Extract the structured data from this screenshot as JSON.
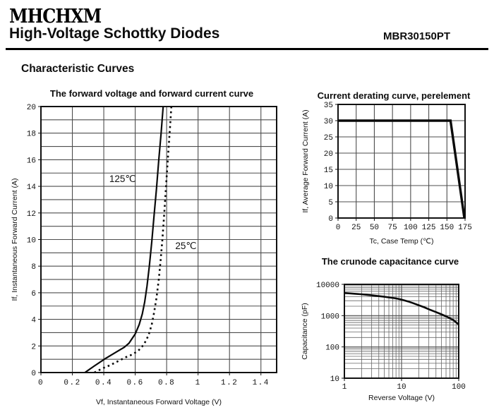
{
  "header": {
    "brand": "MHCHXM",
    "title": "High-Voltage Schottky Diodes",
    "part_number": "MBR30150PT",
    "section_title": "Characteristic Curves"
  },
  "styles": {
    "ink": "#111111",
    "grid": "#4d4d4d",
    "minor_grid": "#666666",
    "curve": "#0a0a0a",
    "background": "#ffffff"
  },
  "chart_data": [
    {
      "id": "forward",
      "type": "line",
      "title": "The forward voltage and forward current curve",
      "xlabel": "Vf, Instantaneous Forward Voltage (V)",
      "ylabel": "If, Instantaneous Forward Current (A)",
      "xscale": "linear",
      "yscale": "linear",
      "xlim": [
        0,
        1.5
      ],
      "ylim": [
        0,
        20
      ],
      "xgrid_step": 0.2,
      "ygrid_step": 1,
      "xticks": [
        0,
        0.2,
        0.4,
        0.6,
        0.8,
        1,
        1.2,
        1.4
      ],
      "xtick_labels": [
        "0",
        "0.2",
        "0.4",
        "0.6",
        "0.8",
        "1",
        "1.2",
        "1.4"
      ],
      "yticks": [
        0,
        2,
        4,
        6,
        8,
        10,
        12,
        14,
        16,
        18,
        20
      ],
      "ytick_labels": [
        "0",
        "2",
        "4",
        "6",
        "8",
        "10",
        "12",
        "14",
        "16",
        "18",
        "20"
      ],
      "grid": true,
      "legend_position": "inline-annotations",
      "series": [
        {
          "name": "125℃",
          "line": "solid",
          "width": 2.2,
          "points": [
            [
              0.28,
              0
            ],
            [
              0.34,
              0.5
            ],
            [
              0.41,
              1.05
            ],
            [
              0.48,
              1.55
            ],
            [
              0.53,
              1.9
            ],
            [
              0.56,
              2.2
            ],
            [
              0.6,
              2.9
            ],
            [
              0.625,
              3.6
            ],
            [
              0.645,
              4.4
            ],
            [
              0.66,
              5.3
            ],
            [
              0.675,
              6.5
            ],
            [
              0.69,
              8
            ],
            [
              0.705,
              9.8
            ],
            [
              0.72,
              11.8
            ],
            [
              0.735,
              13.8
            ],
            [
              0.75,
              16
            ],
            [
              0.765,
              18
            ],
            [
              0.778,
              20
            ]
          ]
        },
        {
          "name": "25℃",
          "line": "dashed",
          "width": 2.6,
          "points": [
            [
              0.34,
              0
            ],
            [
              0.39,
              0.3
            ],
            [
              0.44,
              0.55
            ],
            [
              0.49,
              0.85
            ],
            [
              0.54,
              1.15
            ],
            [
              0.58,
              1.35
            ],
            [
              0.62,
              1.65
            ],
            [
              0.655,
              2.1
            ],
            [
              0.685,
              2.8
            ],
            [
              0.705,
              3.6
            ],
            [
              0.72,
              4.5
            ],
            [
              0.735,
              5.6
            ],
            [
              0.75,
              7
            ],
            [
              0.762,
              8.5
            ],
            [
              0.773,
              10
            ],
            [
              0.785,
              12
            ],
            [
              0.797,
              14.2
            ],
            [
              0.81,
              16.5
            ],
            [
              0.822,
              18.5
            ],
            [
              0.83,
              20
            ]
          ]
        }
      ],
      "annotations": [
        {
          "text": "125℃",
          "x": 0.435,
          "y": 14.6
        },
        {
          "text": "25℃",
          "x": 0.855,
          "y": 9.55
        }
      ]
    },
    {
      "id": "derating",
      "type": "line",
      "title": "Current derating curve, perelement",
      "xlabel": "Tc, Case Temp (℃)",
      "ylabel": "If, Average Forward Current (A)",
      "xscale": "linear",
      "yscale": "linear",
      "xlim": [
        0,
        175
      ],
      "ylim": [
        0,
        35
      ],
      "xgrid_step": 25,
      "ygrid_step": 5,
      "xticks": [
        0,
        25,
        50,
        75,
        100,
        125,
        150,
        175
      ],
      "xtick_labels": [
        "0",
        "25",
        "50",
        "75",
        "100",
        "125",
        "150",
        "175"
      ],
      "yticks": [
        0,
        5,
        10,
        15,
        20,
        25,
        30,
        35
      ],
      "ytick_labels": [
        "0",
        "5",
        "10",
        "15",
        "20",
        "25",
        "30",
        "35"
      ],
      "grid": true,
      "legend_position": "none",
      "series": [
        {
          "name": "derating-limit",
          "line": "solid",
          "width": 3.4,
          "points": [
            [
              0,
              30
            ],
            [
              155,
              30
            ],
            [
              174,
              0
            ]
          ]
        }
      ],
      "annotations": []
    },
    {
      "id": "capacitance",
      "type": "line",
      "title": "The crunode capacitance curve",
      "xlabel": "Reverse Voltage (V)",
      "ylabel": "Capacitance (pF)",
      "xscale": "log",
      "yscale": "log",
      "xlim": [
        1,
        100
      ],
      "ylim": [
        10,
        10000
      ],
      "xticks": [
        1,
        10,
        100
      ],
      "xtick_labels": [
        "1",
        "10",
        "100"
      ],
      "yticks": [
        10,
        100,
        1000,
        10000
      ],
      "ytick_labels": [
        "10",
        "100",
        "1000",
        "10000"
      ],
      "grid": true,
      "legend_position": "none",
      "series": [
        {
          "name": "junction-capacitance",
          "line": "solid",
          "width": 2.6,
          "points": [
            [
              1,
              5300
            ],
            [
              1.5,
              5000
            ],
            [
              2,
              4800
            ],
            [
              3,
              4450
            ],
            [
              4,
              4200
            ],
            [
              5,
              4000
            ],
            [
              6,
              3850
            ],
            [
              8,
              3550
            ],
            [
              10,
              3250
            ],
            [
              13,
              2850
            ],
            [
              16,
              2500
            ],
            [
              20,
              2150
            ],
            [
              25,
              1850
            ],
            [
              30,
              1600
            ],
            [
              40,
              1300
            ],
            [
              50,
              1100
            ],
            [
              60,
              950
            ],
            [
              80,
              730
            ],
            [
              100,
              520
            ]
          ]
        }
      ],
      "annotations": []
    }
  ]
}
